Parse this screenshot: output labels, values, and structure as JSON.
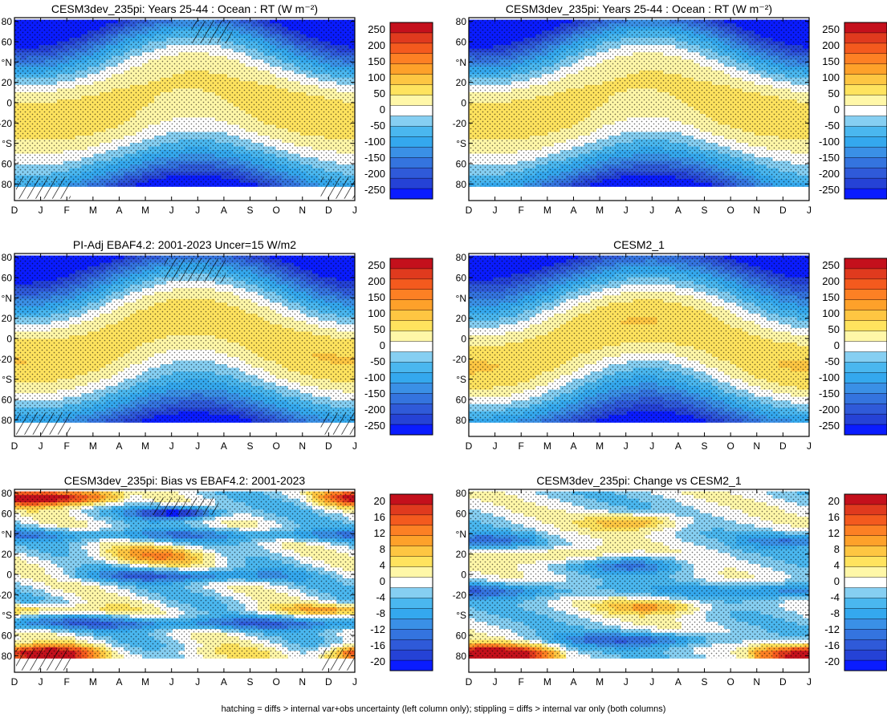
{
  "footnote": "hatching = diffs > internal var+obs uncertainty (left column only); stippling = diffs > internal var only (both columns)",
  "months": [
    "D",
    "J",
    "F",
    "M",
    "A",
    "M",
    "J",
    "J",
    "A",
    "S",
    "O",
    "N",
    "D",
    "J"
  ],
  "lat_ticks": [
    "80",
    "60",
    "°N",
    "20",
    "0",
    "-20",
    "°S",
    "60",
    "80"
  ],
  "chart_data": [
    {
      "type": "heatmap",
      "title": "CESM3dev_235pi: Years 25-44 : Ocean : RT (W m⁻²)",
      "field": "full",
      "variant": 1,
      "hatch": "topright",
      "hatch_bottom": true,
      "colorbar_ticks": [
        "250",
        "200",
        "150",
        "100",
        "50",
        "0",
        "-50",
        "-100",
        "-150",
        "-200",
        "-250"
      ]
    },
    {
      "type": "heatmap",
      "title": "CESM3dev_235pi: Years 25-44 : Ocean : RT (W m⁻²)",
      "field": "full",
      "variant": 1,
      "hatch": "none",
      "hatch_bottom": false,
      "colorbar_ticks": [
        "250",
        "200",
        "150",
        "100",
        "50",
        "0",
        "-50",
        "-100",
        "-150",
        "-200",
        "-250"
      ]
    },
    {
      "type": "heatmap",
      "title": "PI-Adj EBAF4.2: 2001-2023 Uncer=15 W/m2",
      "field": "full",
      "variant": 2,
      "hatch": "topcenter",
      "hatch_bottom": true,
      "colorbar_ticks": [
        "250",
        "200",
        "150",
        "100",
        "50",
        "0",
        "-50",
        "-100",
        "-150",
        "-200",
        "-250"
      ]
    },
    {
      "type": "heatmap",
      "title": "CESM2_1",
      "field": "full",
      "variant": 3,
      "hatch": "none",
      "hatch_bottom": false,
      "colorbar_ticks": [
        "250",
        "200",
        "150",
        "100",
        "50",
        "0",
        "-50",
        "-100",
        "-150",
        "-200",
        "-250"
      ]
    },
    {
      "type": "heatmap",
      "title": "CESM3dev_235pi: Bias vs EBAF4.2: 2001-2023",
      "field": "bias",
      "variant": 4,
      "hatch": "center",
      "hatch_bottom": true,
      "colorbar_ticks": [
        "20",
        "16",
        "12",
        "8",
        "4",
        "0",
        "-4",
        "-8",
        "-12",
        "-16",
        "-20"
      ]
    },
    {
      "type": "heatmap",
      "title": "CESM3dev_235pi: Change vs CESM2_1",
      "field": "change",
      "variant": 5,
      "hatch": "none",
      "hatch_bottom": false,
      "colorbar_ticks": [
        "20",
        "16",
        "12",
        "8",
        "4",
        "0",
        "-4",
        "-8",
        "-12",
        "-16",
        "-20"
      ]
    }
  ],
  "colors": {
    "scale": [
      "#0a1cff",
      "#2542d6",
      "#2f5ad9",
      "#3474df",
      "#3a90e6",
      "#34a8ee",
      "#4ab7ef",
      "#86cff2",
      "#ffffff",
      "#fff7a8",
      "#ffe35e",
      "#fec642",
      "#fea12a",
      "#fd8024",
      "#f45a1e",
      "#e03a1e",
      "#c4101c"
    ]
  }
}
